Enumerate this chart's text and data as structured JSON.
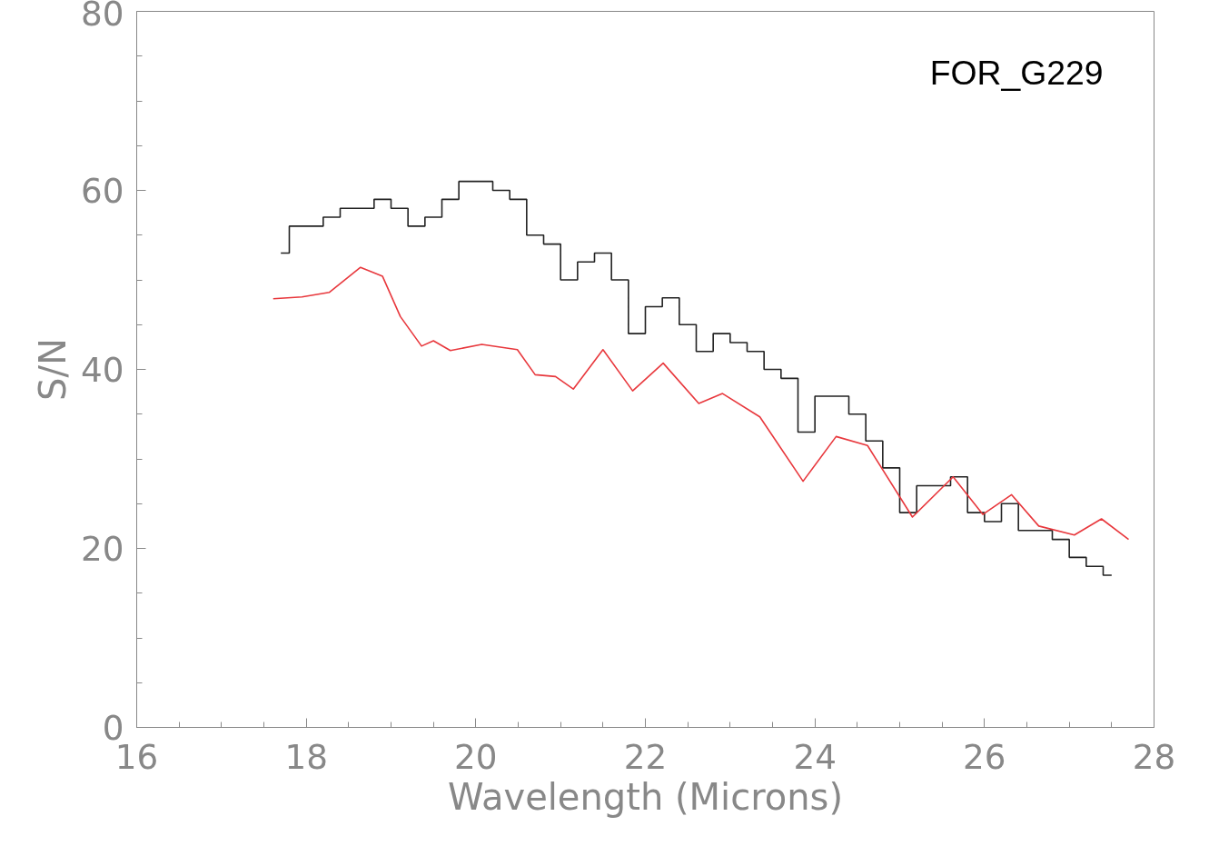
{
  "chart_data": {
    "type": "line",
    "xlabel": "Wavelength (Microns)",
    "ylabel": "S/N",
    "annotations": [
      "FOR_G229"
    ],
    "xlim": [
      16,
      28
    ],
    "ylim": [
      0,
      80
    ],
    "xticks": [
      16,
      {
        "value": 16.5,
        "label": null
      },
      {
        "value": 17,
        "label": null
      },
      {
        "value": 17.5,
        "label": null
      },
      18,
      {
        "value": 18.5,
        "label": null
      },
      {
        "value": 19,
        "label": null
      },
      {
        "value": 19.5,
        "label": null
      },
      20,
      {
        "value": 20.5,
        "label": null
      },
      {
        "value": 21,
        "label": null
      },
      {
        "value": 21.5,
        "label": null
      },
      22,
      {
        "value": 22.5,
        "label": null
      },
      {
        "value": 23,
        "label": null
      },
      {
        "value": 23.5,
        "label": null
      },
      24,
      {
        "value": 24.5,
        "label": null
      },
      {
        "value": 25,
        "label": null
      },
      {
        "value": 25.5,
        "label": null
      },
      26,
      {
        "value": 26.5,
        "label": null
      },
      {
        "value": 27,
        "label": null
      },
      {
        "value": 27.5,
        "label": null
      },
      28
    ],
    "yticks": [
      0,
      {
        "value": 5,
        "label": null
      },
      {
        "value": 10,
        "label": null
      },
      {
        "value": 15,
        "label": null
      },
      20,
      {
        "value": 25,
        "label": null
      },
      {
        "value": 30,
        "label": null
      },
      {
        "value": 35,
        "label": null
      },
      40,
      {
        "value": 45,
        "label": null
      },
      {
        "value": 50,
        "label": null
      },
      {
        "value": 55,
        "label": null
      },
      60,
      {
        "value": 65,
        "label": null
      },
      {
        "value": 70,
        "label": null
      },
      {
        "value": 75,
        "label": null
      },
      80
    ],
    "grid": false,
    "series": [
      {
        "type": "step",
        "color": "#222222",
        "x": [
          17.7,
          17.9,
          18.1,
          18.3,
          18.5,
          18.7,
          18.9,
          19.1,
          19.3,
          19.5,
          19.7,
          19.9,
          20.1,
          20.3,
          20.5,
          20.7,
          20.9,
          21.1,
          21.3,
          21.5,
          21.7,
          21.9,
          22.1,
          22.3,
          22.5,
          22.7,
          22.9,
          23.1,
          23.3,
          23.5,
          23.7,
          23.9,
          24.1,
          24.3,
          24.5,
          24.7,
          24.9,
          25.1,
          25.3,
          25.5,
          25.7,
          25.9,
          26.1,
          26.3,
          26.5,
          26.7,
          26.9,
          27.1,
          27.3,
          27.5
        ],
        "values": [
          53,
          56,
          56,
          57,
          58,
          58,
          59,
          58,
          56,
          57,
          59,
          61,
          61,
          60,
          59,
          55,
          54,
          50,
          52,
          53,
          50,
          44,
          47,
          48,
          45,
          42,
          44,
          43,
          42,
          40,
          39,
          33,
          37,
          37,
          35,
          32,
          29,
          24,
          27,
          27,
          28,
          24,
          23,
          25,
          22,
          22,
          21,
          19,
          18,
          17
        ]
      },
      {
        "color": "#e8383d",
        "x": [
          17.61,
          17.95,
          18.27,
          18.64,
          18.9,
          19.11,
          19.36,
          19.5,
          19.7,
          20.07,
          20.49,
          20.7,
          20.94,
          21.15,
          21.5,
          21.85,
          22.21,
          22.63,
          22.91,
          23.35,
          23.86,
          24.25,
          24.62,
          25.15,
          25.63,
          25.98,
          26.32,
          26.64,
          27.06,
          27.38,
          27.7
        ],
        "values": [
          47.9,
          48.1,
          48.6,
          51.4,
          50.4,
          45.9,
          42.6,
          43.2,
          42.1,
          42.8,
          42.2,
          39.4,
          39.2,
          37.8,
          42.2,
          37.6,
          40.7,
          36.2,
          37.3,
          34.7,
          27.5,
          32.5,
          31.5,
          23.5,
          28.0,
          23.8,
          26.0,
          22.5,
          21.5,
          23.3,
          21.0
        ]
      }
    ]
  }
}
